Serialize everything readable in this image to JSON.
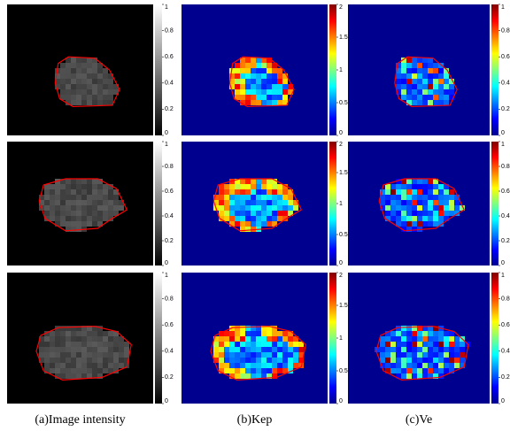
{
  "panels": {
    "columns": [
      {
        "caption": "(a)Image intensity",
        "colorbar_ticks": [
          "1",
          "0.8",
          "0.6",
          "0.4",
          "0.2",
          "0"
        ]
      },
      {
        "caption": "(b)Kep",
        "colorbar_ticks": [
          "2",
          "1.5",
          "1",
          "0.5",
          "0"
        ]
      },
      {
        "caption": "(c)Ve",
        "colorbar_ticks": [
          "1",
          "0.8",
          "0.6",
          "0.4",
          "0.2",
          "0"
        ]
      }
    ]
  }
}
